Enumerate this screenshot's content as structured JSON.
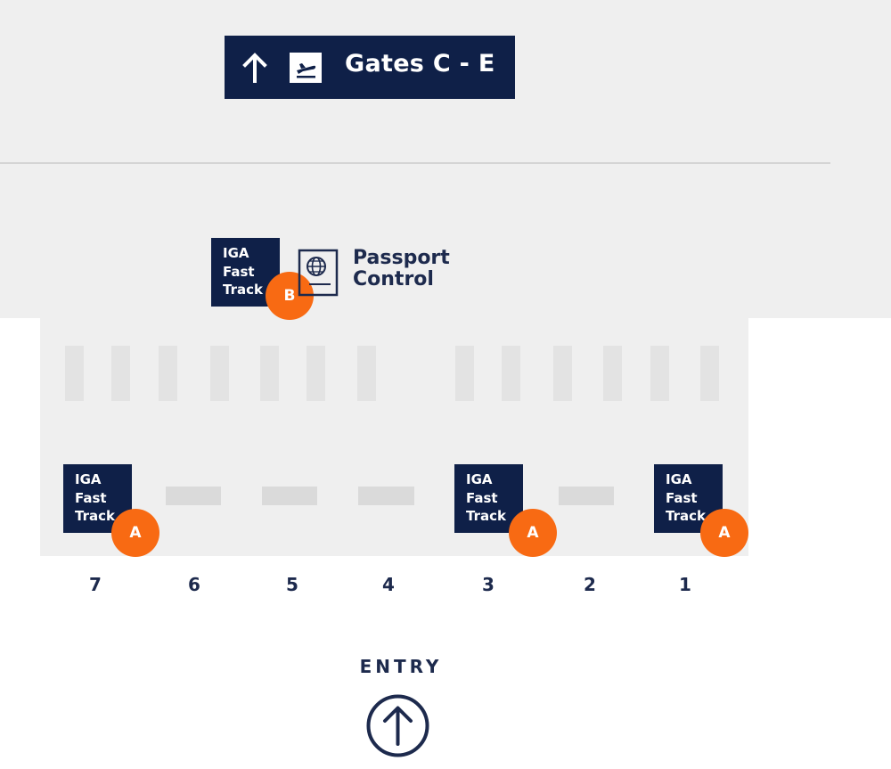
{
  "signage": {
    "gates_direction": {
      "text": "Gates C - E",
      "arrow_icon": "arrow-up-icon",
      "departure_icon": "departure-plane-icon"
    }
  },
  "passport_control": {
    "line1": "Passport",
    "line2": "Control",
    "icon": "passport-icon"
  },
  "fast_track_points": [
    {
      "line1": "IGA",
      "line2": "Fast",
      "line3": "Track",
      "marker": "B"
    },
    {
      "line1": "IGA",
      "line2": "Fast",
      "line3": "Track",
      "marker": "A"
    },
    {
      "line1": "IGA",
      "line2": "Fast",
      "line3": "Track",
      "marker": "A"
    },
    {
      "line1": "IGA",
      "line2": "Fast",
      "line3": "Track",
      "marker": "A"
    }
  ],
  "lanes": [
    "7",
    "6",
    "5",
    "4",
    "3",
    "2",
    "1"
  ],
  "entry": {
    "label": "ENTRY",
    "icon": "arrow-up-circle-icon"
  },
  "colors": {
    "navy": "#0f2048",
    "marker_orange": "#f86a13",
    "floor_grey": "#efefef",
    "text_navy": "#1d2a4d"
  }
}
